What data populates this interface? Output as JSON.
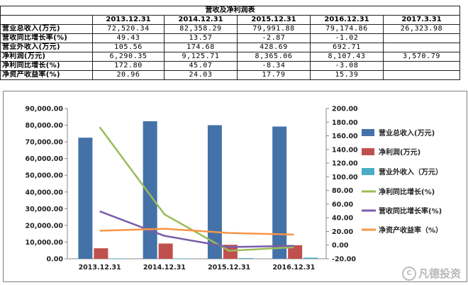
{
  "table": {
    "title": "营收及净利润表",
    "columns": [
      "2013.12.31",
      "2014.12.31",
      "2015.12.31",
      "2016.12.31",
      "2017.3.31"
    ],
    "rows": [
      {
        "label": "营业总收入(万元)",
        "values": [
          "72,520.34",
          "82,358.29",
          "79,991.88",
          "79,174.86",
          "26,323.98"
        ]
      },
      {
        "label": "营收同比增长率(%)",
        "values": [
          "49.43",
          "13.57",
          "-2.87",
          "-1.02",
          ""
        ]
      },
      {
        "label": "营业外收入(万元)",
        "values": [
          "105.56",
          "174.68",
          "428.69",
          "692.71",
          ""
        ]
      },
      {
        "label": "净利润(万元)",
        "values": [
          "6,290.35",
          "9,125.71",
          "8,365.06",
          "8,107.43",
          "3,570.79"
        ]
      },
      {
        "label": "净利同比增长(%)",
        "values": [
          "172.80",
          "45.07",
          "-8.34",
          "-3.08",
          ""
        ]
      },
      {
        "label": "净资产收益率(%)",
        "values": [
          "20.96",
          "24.03",
          "17.79",
          "15.39",
          ""
        ]
      }
    ]
  },
  "chart_data": {
    "type": "bar+line",
    "categories": [
      "2013.12.31",
      "2014.12.31",
      "2015.12.31",
      "2016.12.31"
    ],
    "left_axis": {
      "min": 0,
      "max": 90000,
      "step": 10000,
      "ticks": [
        "0.00",
        "10,000.00",
        "20,000.00",
        "30,000.00",
        "40,000.00",
        "50,000.00",
        "60,000.00",
        "70,000.00",
        "80,000.00",
        "90,000.00"
      ]
    },
    "right_axis": {
      "min": -20,
      "max": 200,
      "step": 20,
      "ticks": [
        "-20.00",
        "0.00",
        "20.00",
        "40.00",
        "60.00",
        "80.00",
        "100.00",
        "120.00",
        "140.00",
        "160.00",
        "180.00",
        "200.00"
      ]
    },
    "bar_series": [
      {
        "name": "营业总收入(万元)",
        "color": "#4472a8",
        "values": [
          72520.34,
          82358.29,
          79991.88,
          79174.86
        ]
      },
      {
        "name": "净利润(万元)",
        "color": "#c0504d",
        "values": [
          6290.35,
          9125.71,
          8365.06,
          8107.43
        ]
      },
      {
        "name": "营业外收入（万元）",
        "color": "#4bacc6",
        "values": [
          105.56,
          174.68,
          428.69,
          692.71
        ]
      }
    ],
    "line_series": [
      {
        "name": "净利同比增长(%)",
        "color": "#9bbb59",
        "values": [
          172.8,
          45.07,
          -8.34,
          -3.08
        ]
      },
      {
        "name": "营收同比增长率(%)",
        "color": "#7a5ca8",
        "values": [
          49.43,
          13.57,
          -2.87,
          -1.02
        ]
      },
      {
        "name": "净资产收益率（%）",
        "color": "#f79646",
        "values": [
          20.96,
          24.03,
          17.79,
          15.39
        ]
      }
    ]
  },
  "watermark": {
    "text": "凡德投资",
    "icon": "C"
  }
}
